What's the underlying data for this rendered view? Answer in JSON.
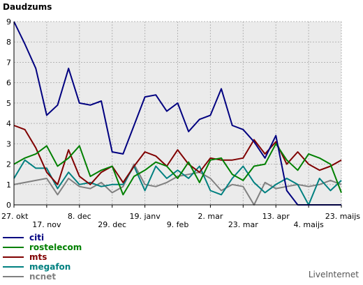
{
  "chart_data": {
    "type": "line",
    "title": "Daudzums",
    "watermark": "LiveInternet",
    "ylim": [
      0,
      9
    ],
    "yticks": [
      0,
      1,
      2,
      3,
      4,
      5,
      6,
      7,
      8,
      9
    ],
    "grid": true,
    "legend_position": "bottom-left",
    "xlabels_row1": [
      {
        "label": "27. okt",
        "index": 0
      },
      {
        "label": "8. dec",
        "index": 6
      },
      {
        "label": "19. janv",
        "index": 12
      },
      {
        "label": "2. mar",
        "index": 18
      },
      {
        "label": "13. apr",
        "index": 24
      },
      {
        "label": "23. maijs",
        "index": 30
      }
    ],
    "xlabels_row2": [
      {
        "label": "17. nov",
        "index": 3
      },
      {
        "label": "29. dec",
        "index": 9
      },
      {
        "label": "9. feb",
        "index": 15
      },
      {
        "label": "23. mar",
        "index": 21
      },
      {
        "label": "4. maijs",
        "index": 27
      }
    ],
    "n_points": 31,
    "series": [
      {
        "name": "citi",
        "color": "#000080",
        "values": [
          9,
          7.9,
          6.7,
          4.4,
          4.9,
          6.7,
          5.0,
          4.9,
          5.1,
          2.6,
          2.5,
          3.9,
          5.3,
          5.4,
          4.6,
          5.0,
          3.6,
          4.2,
          4.4,
          5.7,
          3.9,
          3.7,
          3.1,
          2.3,
          3.4,
          0.7,
          0,
          0,
          0,
          0,
          0
        ]
      },
      {
        "name": "rostelecom",
        "color": "#008000",
        "values": [
          2.0,
          2.3,
          2.5,
          2.9,
          1.9,
          2.3,
          2.9,
          1.4,
          1.7,
          1.9,
          0.5,
          1.4,
          1.7,
          2.1,
          1.9,
          1.3,
          2.1,
          1.1,
          2.2,
          2.3,
          1.5,
          1.2,
          1.9,
          2.0,
          3.0,
          2.2,
          1.7,
          2.5,
          2.3,
          2.0,
          0.6
        ]
      },
      {
        "name": "mts",
        "color": "#800000",
        "values": [
          3.9,
          3.7,
          2.8,
          1.6,
          1.0,
          2.7,
          1.4,
          1.0,
          1.6,
          1.9,
          1.1,
          1.9,
          2.6,
          2.4,
          1.9,
          2.7,
          2.0,
          1.6,
          2.3,
          2.2,
          2.2,
          2.3,
          3.2,
          2.5,
          3.1,
          2.0,
          2.6,
          2.0,
          1.7,
          1.9,
          2.2
        ]
      },
      {
        "name": "megafon",
        "color": "#008080",
        "values": [
          1.3,
          2.2,
          1.8,
          1.8,
          0.8,
          1.6,
          1.0,
          1.1,
          0.9,
          1.0,
          1.0,
          1.9,
          0.7,
          1.9,
          1.3,
          1.7,
          1.3,
          1.9,
          0.7,
          0.5,
          1.3,
          1.9,
          1.1,
          0.6,
          1.0,
          1.3,
          1.0,
          0.0,
          1.3,
          0.7,
          1.2
        ]
      },
      {
        "name": "ncnet",
        "color": "#808080",
        "values": [
          1.0,
          1.1,
          1.2,
          1.3,
          0.5,
          1.3,
          0.9,
          0.8,
          1.1,
          0.6,
          0.9,
          2.0,
          1.0,
          0.9,
          1.1,
          1.4,
          1.5,
          1.6,
          1.3,
          0.7,
          1.0,
          0.9,
          0.0,
          1.1,
          0.8,
          0.9,
          1.0,
          0.9,
          1.0,
          1.2,
          1.0
        ]
      }
    ]
  }
}
